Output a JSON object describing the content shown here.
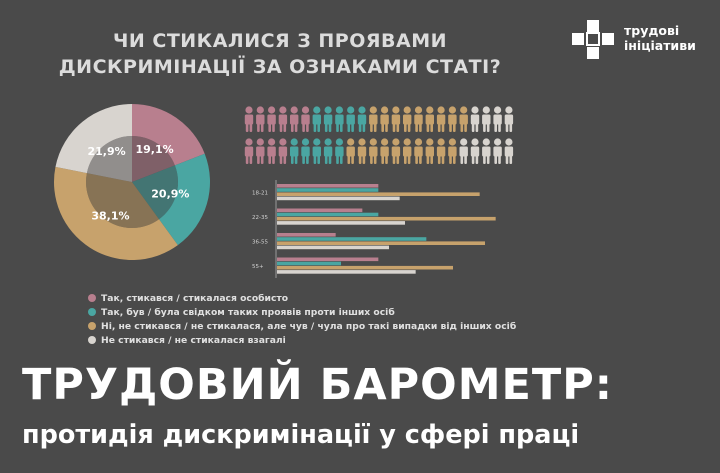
{
  "question": {
    "line1": "ЧИ СТИКАЛИСЯ З ПРОЯВАМИ",
    "line2": "ДИСКРИМІНАЦІЇ ЗА ОЗНАКАМИ СТАТІ?"
  },
  "logo": {
    "line1": "трудові",
    "line2": "ініціативи"
  },
  "colors": {
    "pink": "#b87f8e",
    "teal": "#4aa6a2",
    "tan": "#c7a26c",
    "light": "#d8d4cf",
    "background": "#4a4a4a"
  },
  "legend": [
    {
      "label": "Так, стикався / стикалася особисто",
      "color": "#b87f8e"
    },
    {
      "label": "Так, був / була свідком таких проявів проти інших осіб",
      "color": "#4aa6a2"
    },
    {
      "label": "Ні, не стикався / не стикалася, але чув / чула про такі випадки від інших осіб",
      "color": "#c7a26c"
    },
    {
      "label": "Не стикався / не стикалася взагалі",
      "color": "#d8d4cf"
    }
  ],
  "chart_data": [
    {
      "type": "pie",
      "categories": [
        "Так, стикався / стикалася особисто",
        "Так, був / була свідком таких проявів проти інших осіб",
        "Ні, не стикався / не стикалася, але чув / чула про такі випадки від інших осіб",
        "Не стикався / не стикалася взагалі"
      ],
      "values": [
        19.1,
        20.9,
        38.1,
        21.9
      ],
      "labels": [
        "19,1%",
        "20,9%",
        "38,1%",
        "21,9%"
      ],
      "colors": [
        "#b87f8e",
        "#4aa6a2",
        "#c7a26c",
        "#d8d4cf"
      ]
    },
    {
      "type": "bar",
      "orientation": "horizontal",
      "categories": [
        "18-21",
        "22-35",
        "36-55",
        "55+"
      ],
      "series": [
        {
          "values": [
            19,
            16,
            11,
            19
          ],
          "color": "#b87f8e"
        },
        {
          "values": [
            19,
            19,
            28,
            12
          ],
          "color": "#4aa6a2"
        },
        {
          "values": [
            38,
            41,
            39,
            33
          ],
          "color": "#c7a26c"
        },
        {
          "values": [
            23,
            24,
            21,
            26
          ],
          "color": "#d8d4cf"
        }
      ],
      "xlim": [
        0,
        45
      ]
    },
    {
      "type": "pictogram",
      "rows": [
        {
          "counts": [
            6,
            5,
            9,
            4
          ],
          "colors": [
            "#b87f8e",
            "#4aa6a2",
            "#c7a26c",
            "#d8d4cf"
          ]
        },
        {
          "counts": [
            4,
            5,
            10,
            5
          ],
          "colors": [
            "#b87f8e",
            "#4aa6a2",
            "#c7a26c",
            "#d8d4cf"
          ]
        }
      ]
    }
  ],
  "main_title": "ТРУДОВИЙ БАРОМЕТР:",
  "subtitle": "протидія дискримінації у сфері праці"
}
